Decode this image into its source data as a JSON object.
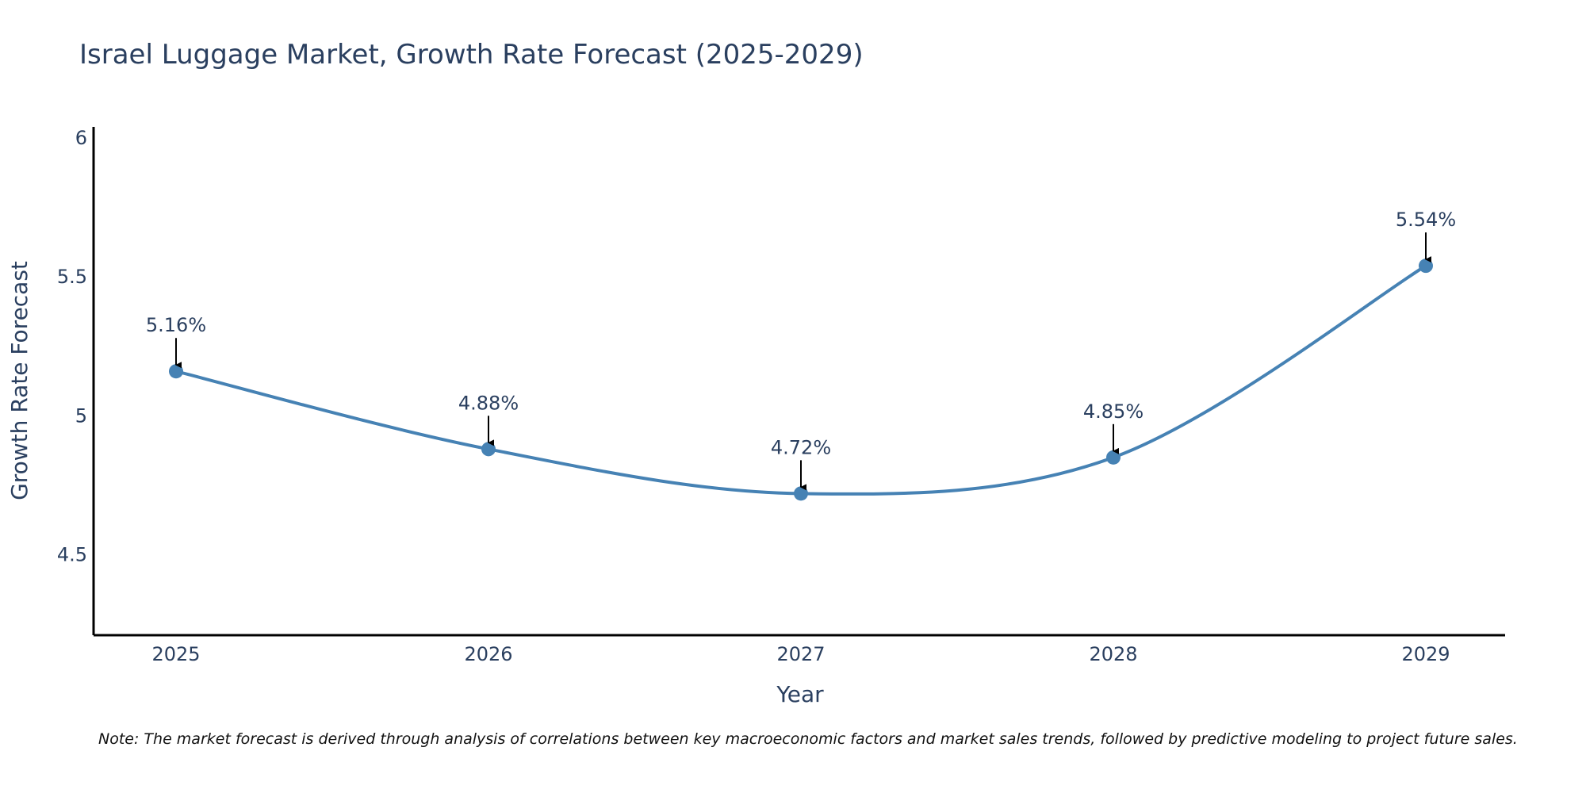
{
  "chart_data": {
    "type": "line",
    "title": "Israel Luggage Market, Growth Rate Forecast (2025-2029)",
    "xlabel": "Year",
    "ylabel": "Growth Rate Forecast",
    "categories": [
      "2025",
      "2026",
      "2027",
      "2028",
      "2029"
    ],
    "series": [
      {
        "name": "Growth Rate Forecast",
        "values": [
          5.16,
          4.88,
          4.72,
          4.85,
          5.54
        ],
        "labels": [
          "5.16%",
          "4.88%",
          "4.72%",
          "4.85%",
          "5.54%"
        ]
      }
    ],
    "ylim": [
      4.21,
      6.04
    ],
    "yticks": [
      4.5,
      5,
      5.5,
      6
    ],
    "ytick_labels": [
      "4.5",
      "5",
      "5.5",
      "6"
    ],
    "grid": false,
    "line_color": "#4682B4",
    "marker_color": "#4682B4",
    "arrow_color": "#000000",
    "note": "Note: The market forecast is derived through analysis of correlations between key macroeconomic factors and market sales trends, followed by predictive modeling to project future sales."
  }
}
